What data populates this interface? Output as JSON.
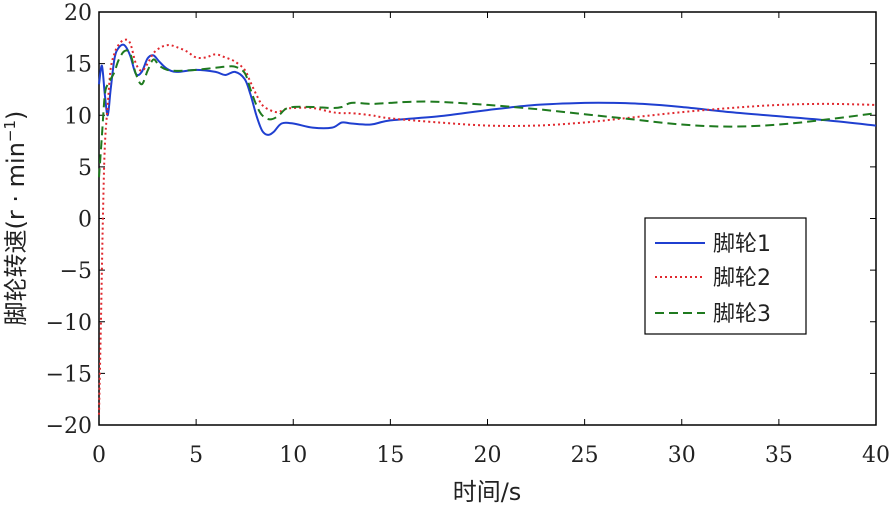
{
  "chart_data": {
    "type": "line",
    "title": "",
    "xlabel": "时间/s",
    "ylabel": "脚轮转速(r · min",
    "ylabel_sup": "−1",
    "ylabel_close": ")",
    "xlim": [
      0,
      40
    ],
    "ylim": [
      -20,
      20
    ],
    "xticks": [
      0,
      5,
      10,
      15,
      20,
      25,
      30,
      35,
      40
    ],
    "yticks": [
      -20,
      -15,
      -10,
      -5,
      0,
      5,
      10,
      15,
      20
    ],
    "xtick_labels": [
      "0",
      "5",
      "10",
      "15",
      "20",
      "25",
      "30",
      "35",
      "40"
    ],
    "ytick_labels": [
      "−20",
      "−15",
      "−10",
      "−5",
      "0",
      "5",
      "10",
      "15",
      "20"
    ],
    "grid": false,
    "legend_position": "center-right",
    "series": [
      {
        "name": "脚轮1",
        "color": "#1f3fd0",
        "dash": "solid",
        "x": [
          0,
          0.15,
          0.3,
          0.45,
          0.6,
          0.8,
          1.0,
          1.3,
          1.6,
          1.9,
          2.2,
          2.5,
          2.8,
          3.1,
          3.5,
          4,
          5,
          6,
          6.5,
          7,
          7.5,
          7.8,
          8.1,
          8.4,
          8.7,
          9,
          9.4,
          10,
          11,
          12,
          12.5,
          13,
          14,
          15,
          17.5,
          20,
          22.5,
          25,
          26.5,
          28,
          30,
          32.5,
          35,
          37.5,
          40
        ],
        "y": [
          13,
          14.8,
          12,
          10,
          12.5,
          15.5,
          16.5,
          16.8,
          15.8,
          14,
          14.2,
          15.5,
          15.8,
          15.2,
          14.5,
          14.2,
          14.4,
          14.2,
          13.9,
          14.2,
          13.5,
          12,
          10,
          8.5,
          8.1,
          8.4,
          9.2,
          9.2,
          8.8,
          8.8,
          9.3,
          9.2,
          9.1,
          9.5,
          9.9,
          10.5,
          11.0,
          11.2,
          11.2,
          11.1,
          10.8,
          10.3,
          9.9,
          9.5,
          9.0
        ]
      },
      {
        "name": "脚轮2",
        "color": "#e0282e",
        "dash": "dotted",
        "x": [
          0,
          0.1,
          0.2,
          0.3,
          0.45,
          0.6,
          0.8,
          1.0,
          1.3,
          1.6,
          1.9,
          2.2,
          2.5,
          2.8,
          3.2,
          3.6,
          4,
          4.5,
          5,
          5.5,
          6,
          6.5,
          7,
          7.5,
          7.8,
          8.1,
          8.4,
          8.8,
          9.2,
          9.6,
          10,
          11,
          12,
          12.5,
          13,
          14,
          15,
          17.5,
          20,
          22.5,
          25,
          27.5,
          30,
          32.5,
          35,
          37.5,
          40
        ],
        "y": [
          -19,
          -10,
          0,
          7,
          11,
          14.5,
          16,
          16.8,
          17.3,
          17,
          15,
          14.3,
          15,
          16,
          16.6,
          16.8,
          16.6,
          16.2,
          15.6,
          15.6,
          15.9,
          15.6,
          15.2,
          14.4,
          13.2,
          12,
          11,
          10.5,
          10.3,
          10.6,
          10.7,
          10.7,
          10.3,
          10.2,
          10.2,
          10.0,
          9.7,
          9.3,
          9.0,
          9.0,
          9.3,
          9.8,
          10.3,
          10.7,
          11.0,
          11.1,
          11.0
        ]
      },
      {
        "name": "脚轮3",
        "color": "#1f7a1f",
        "dash": "dashed",
        "x": [
          0,
          0.15,
          0.3,
          0.45,
          0.6,
          0.8,
          1.0,
          1.3,
          1.6,
          1.9,
          2.2,
          2.5,
          2.8,
          3.1,
          3.5,
          4,
          5,
          6,
          6.5,
          7,
          7.5,
          7.8,
          8.1,
          8.4,
          8.8,
          9.2,
          9.6,
          10,
          11,
          12,
          12.5,
          13,
          14,
          15,
          16,
          17.5,
          20,
          22.5,
          25,
          27.5,
          30,
          32.5,
          35,
          37.5,
          40
        ],
        "y": [
          4,
          8,
          12,
          13,
          13.5,
          14.2,
          15.3,
          16.2,
          16,
          14,
          13,
          14.3,
          15.4,
          14.8,
          14.4,
          14.3,
          14.4,
          14.6,
          14.7,
          14.7,
          14.1,
          12.5,
          11,
          10,
          9.6,
          9.9,
          10.6,
          10.8,
          10.8,
          10.7,
          10.8,
          11.2,
          11.1,
          11.2,
          11.3,
          11.3,
          11.0,
          10.6,
          10.1,
          9.6,
          9.1,
          8.9,
          9.1,
          9.6,
          10.2
        ]
      }
    ]
  }
}
